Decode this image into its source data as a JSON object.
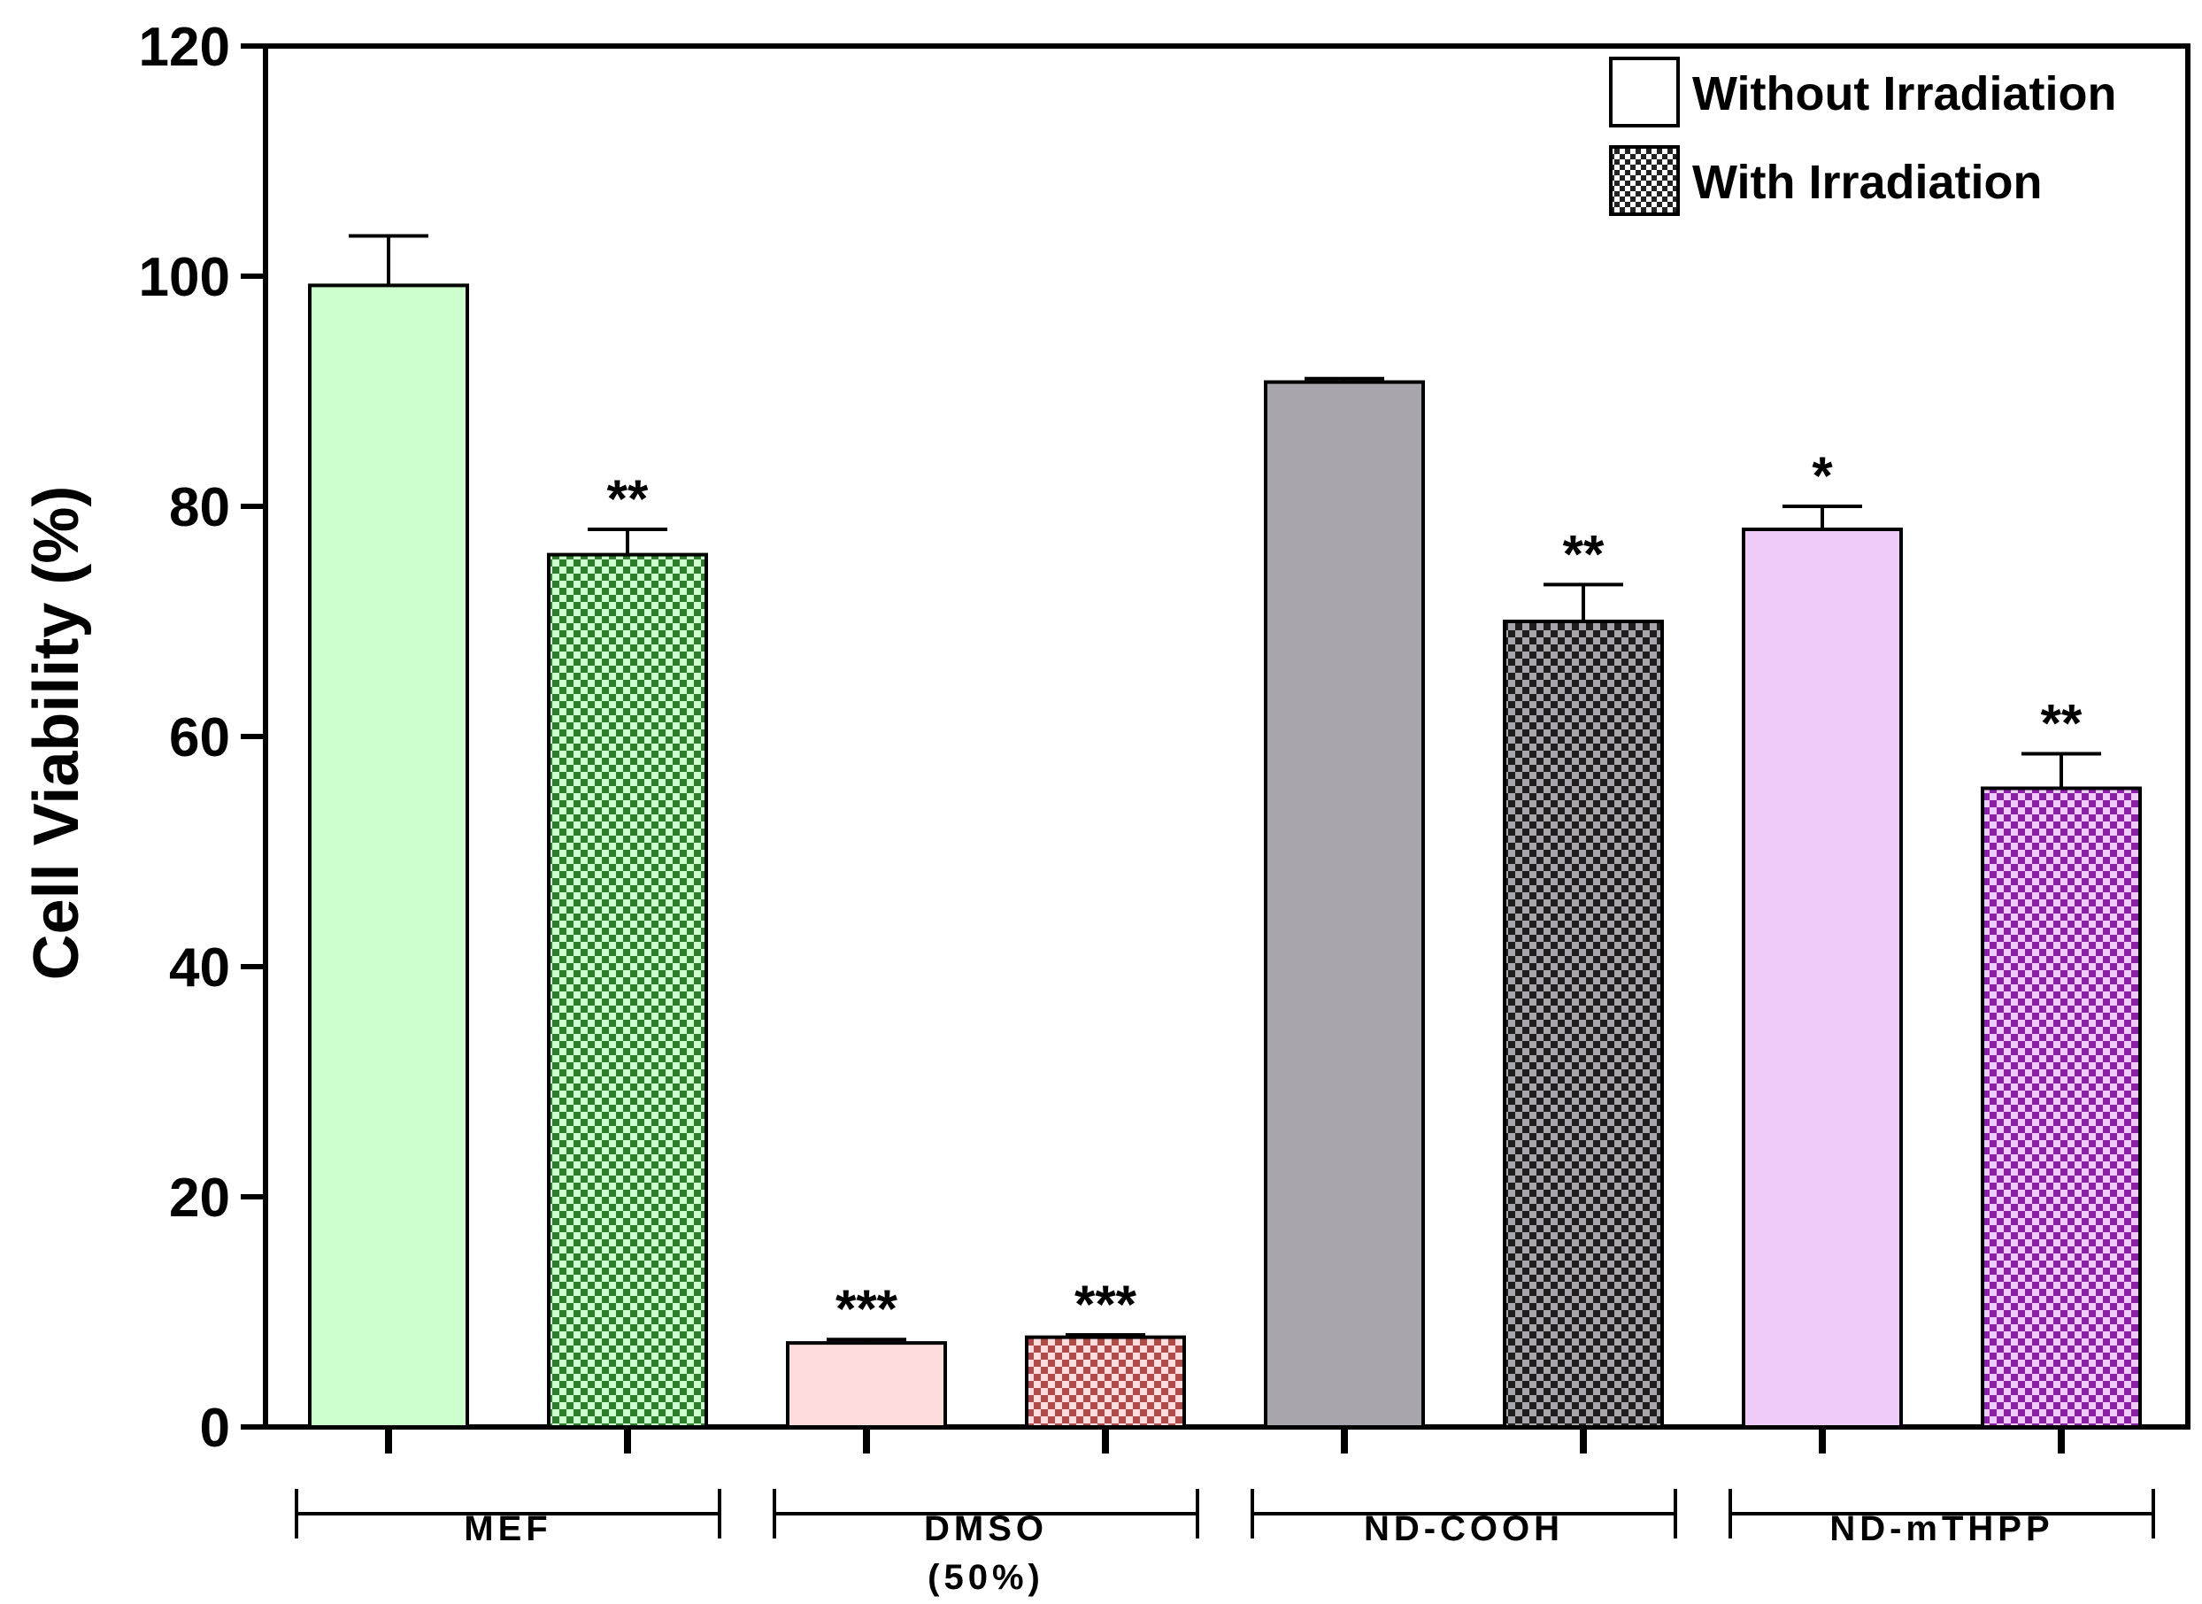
{
  "chart_data": {
    "type": "bar",
    "ylabel": "Cell Viability (%)",
    "xlabel": "",
    "ylim": [
      0,
      120
    ],
    "yticks": [
      0,
      20,
      40,
      60,
      80,
      100,
      120
    ],
    "groups": [
      {
        "label": "MEF",
        "sublabel": ""
      },
      {
        "label": "DMSO",
        "sublabel": "(50%)"
      },
      {
        "label": "ND-COOH",
        "sublabel": ""
      },
      {
        "label": "ND-mTHPP",
        "sublabel": ""
      }
    ],
    "series": [
      {
        "name": "Without Irradiation",
        "pattern": "solid",
        "values": [
          99.2,
          7.3,
          90.8,
          78.0
        ],
        "errors": [
          4.3,
          0.3,
          0.3,
          2.0
        ],
        "significance": [
          "",
          "***",
          "",
          "*"
        ]
      },
      {
        "name": "With Irradiation",
        "pattern": "checker",
        "values": [
          75.8,
          7.8,
          70.0,
          55.5
        ],
        "errors": [
          2.2,
          0.2,
          3.2,
          3.0
        ],
        "significance": [
          "**",
          "***",
          "**",
          "**"
        ]
      }
    ],
    "colors": {
      "MEF": {
        "light": "#ccffcc",
        "check": "#2e7d2e"
      },
      "DMSO": {
        "light": "#fcdcdc",
        "check": "#b04a4a"
      },
      "ND-COOH": {
        "light": "#a8a6ac",
        "check": "#1e1e1e"
      },
      "ND-mTHPP": {
        "light": "#eeccf7",
        "check": "#8c1fa8"
      }
    },
    "legend": {
      "position": "top-right",
      "entries": [
        "Without Irradiation",
        "With Irradiation"
      ]
    }
  }
}
